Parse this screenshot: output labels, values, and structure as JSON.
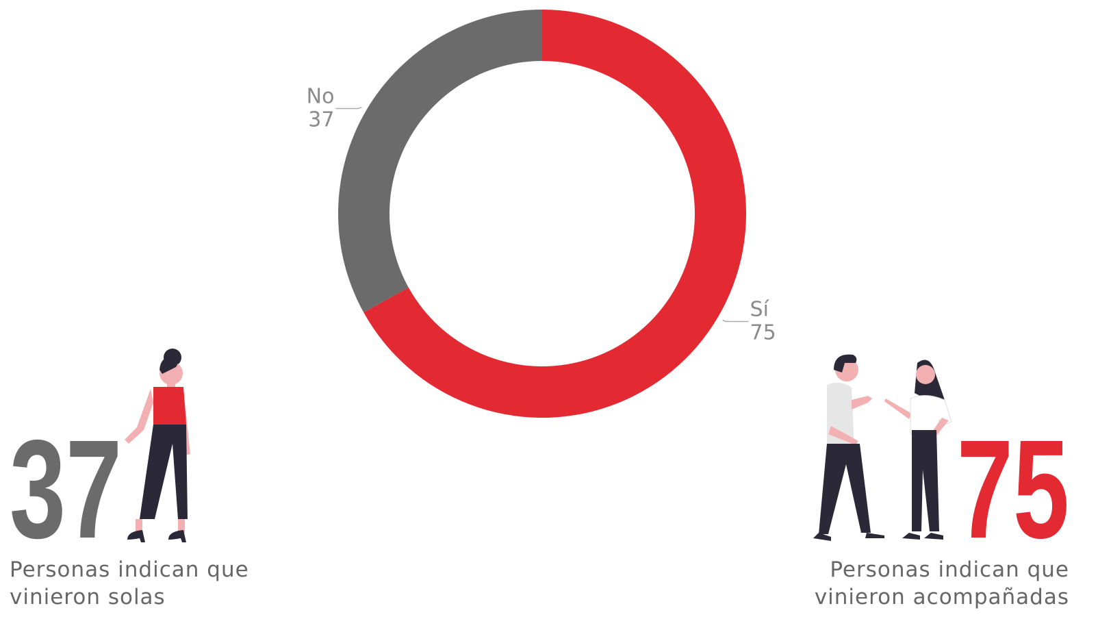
{
  "chart_data": {
    "type": "donut",
    "categories": [
      "Sí",
      "No"
    ],
    "values": [
      75,
      37
    ],
    "colors": [
      "#e32a33",
      "#6b6b6b"
    ],
    "captions": [
      [
        "Personas indican que",
        "vinieron solas"
      ],
      [
        "Personas indican que",
        "vinieron acompañadas"
      ]
    ]
  }
}
